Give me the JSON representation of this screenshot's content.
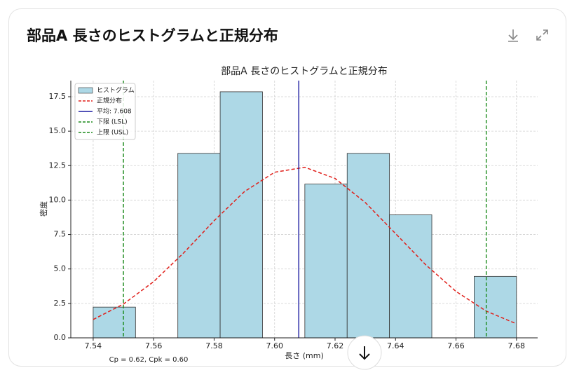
{
  "header": {
    "title": "部品A 長さのヒストグラムと正規分布"
  },
  "chart_data": {
    "type": "histogram",
    "title": "部品A 長さのヒストグラムと正規分布",
    "xlabel": "長さ (mm)",
    "ylabel": "密度",
    "bins": [
      7.54,
      7.554,
      7.568,
      7.582,
      7.596,
      7.61,
      7.624,
      7.638,
      7.652,
      7.666,
      7.68
    ],
    "values": [
      2.23,
      0,
      13.39,
      17.86,
      0,
      11.16,
      13.39,
      8.93,
      0,
      4.46
    ],
    "name": "ヒストグラム",
    "color": "#add8e6",
    "curve": {
      "name": "正規分布",
      "color": "#e0201b",
      "x": [
        7.54,
        7.55,
        7.56,
        7.57,
        7.58,
        7.59,
        7.6,
        7.61,
        7.62,
        7.63,
        7.64,
        7.65,
        7.66,
        7.67,
        7.68
      ],
      "y": [
        1.33,
        2.45,
        4.08,
        6.18,
        8.5,
        10.61,
        12.02,
        12.38,
        11.57,
        9.82,
        7.57,
        5.3,
        3.37,
        1.94,
        1.02
      ]
    },
    "vlines": [
      {
        "name": "平均: 7.608",
        "value": 7.608,
        "color": "#1a1aa0",
        "dash": false
      },
      {
        "name": "下限 (LSL)",
        "value": 7.55,
        "color": "#1a8a1a",
        "dash": true
      },
      {
        "name": "上限 (USL)",
        "value": 7.67,
        "color": "#1a8a1a",
        "dash": true
      }
    ],
    "xlim": [
      7.5326,
      7.687
    ],
    "ylim": [
      0,
      18.67
    ],
    "xticks": [
      7.54,
      7.56,
      7.58,
      {
        "value": 7.6,
        "label": "7.60"
      },
      7.62,
      7.64,
      7.66,
      7.68
    ],
    "yticks": [
      {
        "value": 0,
        "label": "0.0"
      },
      2.5,
      {
        "value": 5,
        "label": "5.0"
      },
      7.5,
      {
        "value": 10,
        "label": "10.0"
      },
      12.5,
      {
        "value": 15,
        "label": "15.0"
      },
      17.5
    ],
    "grid": true,
    "legend": "upper left",
    "footnote": "Cp = 0.62, Cpk = 0.60"
  }
}
